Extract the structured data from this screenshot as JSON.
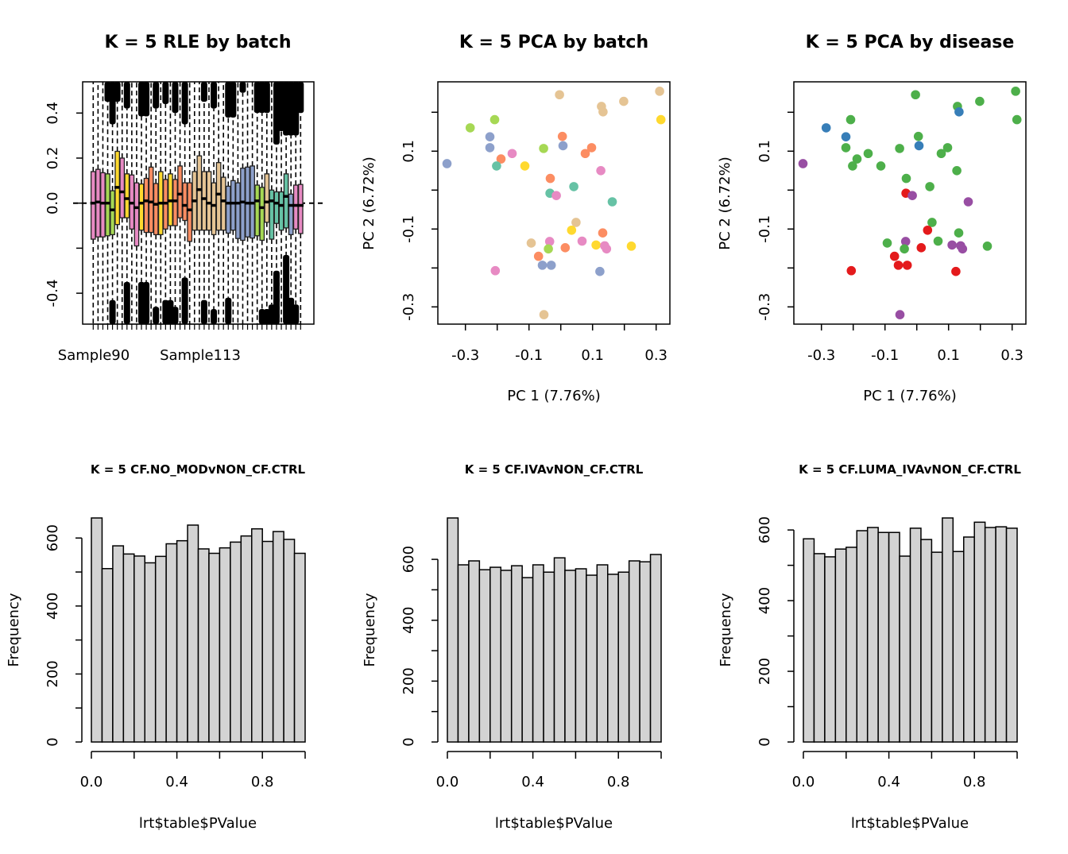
{
  "chart_data": [
    {
      "type": "boxplot",
      "title": "K = 5 RLE by batch",
      "x_tick_labels": [
        "Sample90",
        "Sample113"
      ],
      "y_tick_labels": [
        "-0.4",
        "0.0",
        "0.2",
        "0.4"
      ],
      "y_ticks": [
        -0.4,
        -0.2,
        0.0,
        0.2,
        0.4
      ],
      "ylim": [
        -0.537,
        0.539
      ],
      "reference_line": 0,
      "boxes": {
        "colors": [
          "#E78AC3",
          "#E78AC3",
          "#E78AC3",
          "#A6D854",
          "#A6D854",
          "#FFD92F",
          "#E78AC3",
          "#FFD92F",
          "#E78AC3",
          "#E78AC3",
          "#FFD92F",
          "#FC8D62",
          "#FC8D62",
          "#FC8D62",
          "#FFD92F",
          "#FC8D62",
          "#FFD92F",
          "#FC8D62",
          "#FC8D62",
          "#FC8D62",
          "#FC8D62",
          "#E5C494",
          "#E5C494",
          "#E5C494",
          "#E5C494",
          "#E5C494",
          "#E5C494",
          "#E5C494",
          "#8DA0CB",
          "#8DA0CB",
          "#8DA0CB",
          "#8DA0CB",
          "#8DA0CB",
          "#8DA0CB",
          "#A6D854",
          "#A6D854",
          "#E5C494",
          "#66C2A5",
          "#66C2A5",
          "#66C2A5",
          "#66C2A5",
          "#8DA0CB",
          "#E78AC3",
          "#E78AC3"
        ],
        "q3": [
          0.14,
          0.15,
          0.135,
          0.13,
          0.055,
          0.23,
          0.2,
          0.13,
          0.125,
          0.09,
          0.085,
          0.11,
          0.16,
          0.087,
          0.14,
          0.105,
          0.13,
          0.105,
          0.165,
          0.09,
          0.09,
          0.14,
          0.21,
          0.14,
          0.14,
          0.09,
          0.18,
          0.115,
          0.075,
          0.1,
          0.09,
          0.155,
          0.16,
          0.165,
          0.08,
          0.07,
          0.13,
          0.058,
          0.05,
          0.05,
          0.13,
          0.04,
          0.08,
          0.083
        ],
        "median": [
          0.0,
          0.005,
          0.0,
          0.0,
          -0.03,
          0.07,
          0.05,
          0.02,
          0.0,
          -0.02,
          0.0,
          0.01,
          0.005,
          -0.005,
          0.0,
          0.0,
          0.01,
          0.01,
          0.04,
          -0.01,
          -0.03,
          0.01,
          0.06,
          0.02,
          0.0,
          -0.01,
          0.04,
          0.01,
          0.0,
          0.0,
          0.0,
          0.005,
          0.0,
          0.0,
          0.01,
          -0.02,
          0.005,
          0.01,
          0.0,
          -0.01,
          0.03,
          -0.01,
          -0.01,
          -0.01
        ],
        "q1": [
          -0.16,
          -0.15,
          -0.15,
          -0.145,
          -0.14,
          -0.095,
          -0.065,
          -0.065,
          -0.115,
          -0.19,
          -0.12,
          -0.13,
          -0.13,
          -0.14,
          -0.14,
          -0.115,
          -0.1,
          -0.1,
          -0.065,
          -0.077,
          -0.17,
          -0.12,
          -0.12,
          -0.12,
          -0.12,
          -0.14,
          -0.12,
          -0.12,
          -0.133,
          -0.12,
          -0.157,
          -0.165,
          -0.15,
          -0.155,
          -0.145,
          -0.165,
          -0.085,
          -0.16,
          -0.09,
          -0.12,
          -0.11,
          -0.14,
          -0.115,
          -0.135
        ],
        "whisker_hi": [
          0.54,
          0.54,
          0.54,
          0.45,
          0.35,
          0.45,
          0.54,
          0.42,
          0.54,
          0.54,
          0.385,
          0.385,
          0.54,
          0.42,
          0.54,
          0.44,
          0.54,
          0.4,
          0.54,
          0.35,
          0.54,
          0.54,
          0.54,
          0.45,
          0.54,
          0.42,
          0.54,
          0.54,
          0.38,
          0.38,
          0.54,
          0.49,
          0.54,
          0.54,
          0.4,
          0.4,
          0.4,
          0.54,
          0.26,
          0.32,
          0.3,
          0.3,
          0.3,
          0.4
        ],
        "whisker_lo": [
          -0.54,
          -0.54,
          -0.54,
          -0.54,
          -0.43,
          -0.54,
          -0.54,
          -0.35,
          -0.54,
          -0.54,
          -0.35,
          -0.35,
          -0.54,
          -0.46,
          -0.54,
          -0.43,
          -0.43,
          -0.46,
          -0.54,
          -0.33,
          -0.54,
          -0.54,
          -0.54,
          -0.43,
          -0.54,
          -0.47,
          -0.54,
          -0.54,
          -0.42,
          -0.54,
          -0.54,
          -0.54,
          -0.54,
          -0.54,
          -0.54,
          -0.47,
          -0.47,
          -0.45,
          -0.3,
          -0.54,
          -0.23,
          -0.42,
          -0.45,
          -0.54
        ]
      }
    },
    {
      "type": "scatter",
      "title": "K = 5 PCA by batch",
      "xlabel": "PC 1 (7.76%)",
      "ylabel": "PC 2 (6.72%)",
      "x_tick_labels": [
        "-0.3",
        "-0.1",
        "0.1",
        "0.3"
      ],
      "y_tick_labels": [
        "0.1",
        "-0.1",
        "-0.3"
      ],
      "x": [
        -0.004,
        0.311,
        0.128,
        0.133,
        0.198,
        0.315,
        -0.285,
        -0.208,
        -0.223,
        -0.223,
        -0.358,
        -0.188,
        -0.202,
        -0.153,
        -0.113,
        -0.054,
        0.005,
        0.007,
        0.077,
        0.097,
        0.126,
        -0.033,
        0.041,
        -0.034,
        -0.014,
        0.162,
        0.048,
        0.034,
        0.132,
        -0.093,
        -0.035,
        -0.039,
        0.014,
        0.067,
        0.111,
        0.138,
        0.144,
        0.222,
        -0.07,
        -0.058,
        -0.03,
        -0.206,
        0.123,
        -0.053
      ],
      "y": [
        0.245,
        0.254,
        0.215,
        0.201,
        0.228,
        0.181,
        0.16,
        0.181,
        0.137,
        0.109,
        0.068,
        0.08,
        0.062,
        0.094,
        0.062,
        0.107,
        0.138,
        0.114,
        0.094,
        0.109,
        0.05,
        0.03,
        0.009,
        -0.008,
        -0.014,
        -0.03,
        -0.083,
        -0.103,
        -0.11,
        -0.136,
        -0.132,
        -0.151,
        -0.148,
        -0.131,
        -0.141,
        -0.143,
        -0.151,
        -0.144,
        -0.17,
        -0.193,
        -0.193,
        -0.207,
        -0.209,
        -0.32
      ],
      "colors": [
        "#E5C494",
        "#E5C494",
        "#E5C494",
        "#E5C494",
        "#E5C494",
        "#FFD92F",
        "#A6D854",
        "#A6D854",
        "#8DA0CB",
        "#8DA0CB",
        "#8DA0CB",
        "#FC8D62",
        "#66C2A5",
        "#E78AC3",
        "#FFD92F",
        "#A6D854",
        "#FC8D62",
        "#8DA0CB",
        "#FC8D62",
        "#FC8D62",
        "#E78AC3",
        "#FC8D62",
        "#66C2A5",
        "#66C2A5",
        "#E78AC3",
        "#66C2A5",
        "#E5C494",
        "#FFD92F",
        "#FC8D62",
        "#E5C494",
        "#E78AC3",
        "#A6D854",
        "#FC8D62",
        "#E78AC3",
        "#FFD92F",
        "#E78AC3",
        "#E78AC3",
        "#FFD92F",
        "#FC8D62",
        "#8DA0CB",
        "#8DA0CB",
        "#E78AC3",
        "#8DA0CB",
        "#E5C494"
      ]
    },
    {
      "type": "scatter",
      "title": "K = 5 PCA by disease",
      "xlabel": "PC 1 (7.76%)",
      "ylabel": "PC 2 (6.72%)",
      "x_tick_labels": [
        "-0.3",
        "-0.1",
        "0.1",
        "0.3"
      ],
      "y_tick_labels": [
        "0.1",
        "-0.1",
        "-0.3"
      ],
      "colors": [
        "#4DAF4A",
        "#4DAF4A",
        "#4DAF4A",
        "#377EB8",
        "#4DAF4A",
        "#4DAF4A",
        "#377EB8",
        "#4DAF4A",
        "#377EB8",
        "#4DAF4A",
        "#984EA3",
        "#4DAF4A",
        "#4DAF4A",
        "#4DAF4A",
        "#4DAF4A",
        "#4DAF4A",
        "#4DAF4A",
        "#377EB8",
        "#4DAF4A",
        "#4DAF4A",
        "#4DAF4A",
        "#4DAF4A",
        "#4DAF4A",
        "#E41A1C",
        "#984EA3",
        "#984EA3",
        "#4DAF4A",
        "#E41A1C",
        "#4DAF4A",
        "#4DAF4A",
        "#984EA3",
        "#4DAF4A",
        "#E41A1C",
        "#4DAF4A",
        "#984EA3",
        "#984EA3",
        "#984EA3",
        "#4DAF4A",
        "#E41A1C",
        "#E41A1C",
        "#E41A1C",
        "#E41A1C",
        "#E41A1C",
        "#984EA3"
      ]
    },
    {
      "type": "bar",
      "title": "K = 5 CF.NO_MODvNON_CF.CTRL",
      "xlabel": "lrt$table$PValue",
      "ylabel": "Frequency",
      "x_tick_labels": [
        "0.0",
        "0.4",
        "0.8"
      ],
      "y_tick_labels": [
        "0",
        "200",
        "400",
        "600"
      ],
      "ylim": [
        0,
        659
      ],
      "values": [
        659,
        510,
        577,
        553,
        547,
        527,
        546,
        583,
        592,
        638,
        568,
        555,
        571,
        588,
        606,
        627,
        590,
        619,
        596,
        555
      ]
    },
    {
      "type": "bar",
      "title": "K = 5 CF.IVAvNON_CF.CTRL",
      "xlabel": "lrt$table$PValue",
      "ylabel": "Frequency",
      "x_tick_labels": [
        "0.0",
        "0.4",
        "0.8"
      ],
      "y_tick_labels": [
        "0",
        "200",
        "400",
        "600"
      ],
      "ylim": [
        0,
        736
      ],
      "values": [
        736,
        582,
        595,
        566,
        574,
        564,
        579,
        540,
        582,
        558,
        605,
        564,
        569,
        548,
        582,
        551,
        558,
        595,
        592,
        616
      ]
    },
    {
      "type": "bar",
      "title": "K = 5 CF.LUMA_IVAvNON_CF.CTRL",
      "xlabel": "lrt$table$PValue",
      "ylabel": "Frequency",
      "x_tick_labels": [
        "0.0",
        "0.4",
        "0.8"
      ],
      "y_tick_labels": [
        "0",
        "200",
        "400",
        "600"
      ],
      "ylim": [
        0,
        634
      ],
      "values": [
        575,
        533,
        524,
        546,
        551,
        598,
        607,
        593,
        593,
        526,
        605,
        573,
        537,
        634,
        539,
        580,
        622,
        607,
        609,
        605
      ]
    }
  ]
}
